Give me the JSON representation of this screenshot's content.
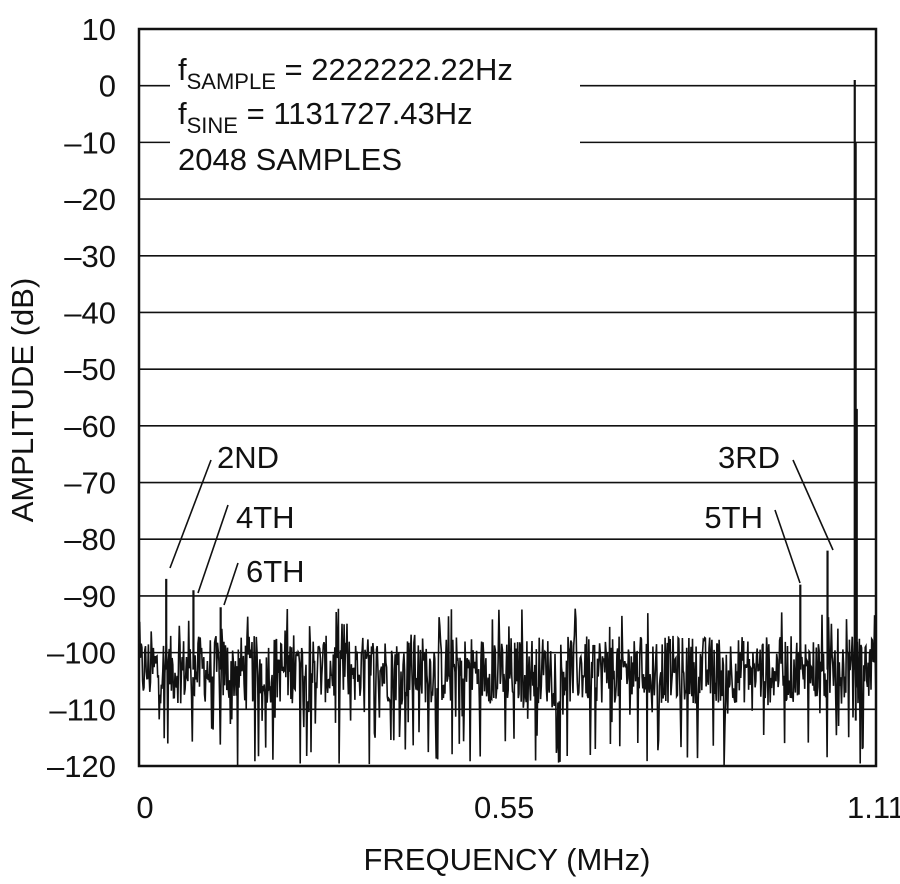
{
  "chart_data": {
    "type": "line",
    "title": "",
    "xlabel": "FREQUENCY (MHz)",
    "ylabel": "AMPLITUDE (dB)",
    "xlim": [
      0,
      1.11
    ],
    "ylim": [
      -120,
      10
    ],
    "x_ticks": [
      {
        "value": 0,
        "label": "0"
      },
      {
        "value": 0.55,
        "label": "0.55"
      },
      {
        "value": 1.11,
        "label": "1.11"
      }
    ],
    "y_ticks": [
      {
        "value": 10,
        "label": "10"
      },
      {
        "value": 0,
        "label": "0"
      },
      {
        "value": -10,
        "label": "–10"
      },
      {
        "value": -20,
        "label": "–20"
      },
      {
        "value": -30,
        "label": "–30"
      },
      {
        "value": -40,
        "label": "–40"
      },
      {
        "value": -50,
        "label": "–50"
      },
      {
        "value": -60,
        "label": "–60"
      },
      {
        "value": -70,
        "label": "–70"
      },
      {
        "value": -80,
        "label": "–80"
      },
      {
        "value": -90,
        "label": "–90"
      },
      {
        "value": -100,
        "label": "–100"
      },
      {
        "value": -110,
        "label": "–110"
      },
      {
        "value": -120,
        "label": "–120"
      }
    ],
    "grid": "horizontal",
    "legend": {
      "placement": "top-left",
      "lines": [
        {
          "main": "f",
          "sub": "SAMPLE",
          "rest": " = 2222222.22Hz"
        },
        {
          "main": "f",
          "sub": "SINE",
          "rest": " = 1131727.43Hz"
        },
        {
          "main": "2048 SAMPLES",
          "sub": "",
          "rest": ""
        }
      ]
    },
    "noise_floor": {
      "mean": -103,
      "min": -120,
      "max": -92
    },
    "peaks": [
      {
        "x": 1.078,
        "y": 1,
        "label": ""
      },
      {
        "x": 1.081,
        "y": -57,
        "label": ""
      },
      {
        "x": 0.041,
        "y": -87,
        "label": "2ND"
      },
      {
        "x": 0.082,
        "y": -89,
        "label": "4TH"
      },
      {
        "x": 0.123,
        "y": -92,
        "label": "6TH"
      },
      {
        "x": 1.037,
        "y": -82,
        "label": "3RD"
      },
      {
        "x": 0.996,
        "y": -88,
        "label": "5TH"
      }
    ]
  }
}
